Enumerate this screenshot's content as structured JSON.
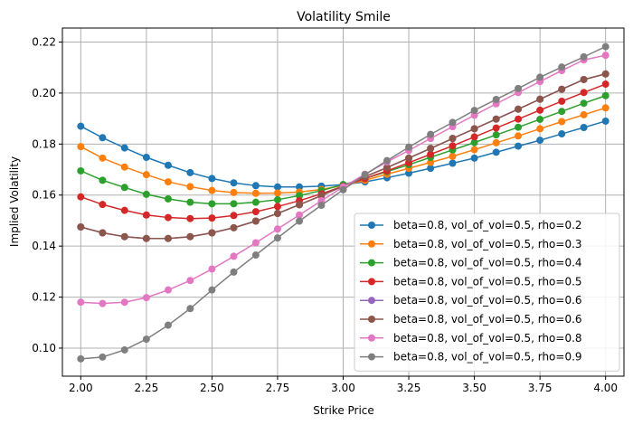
{
  "chart_data": {
    "type": "line",
    "title": "Volatility Smile",
    "xlabel": "Strike Price",
    "ylabel": "Implied Volatility",
    "xlim": [
      1.93,
      4.07
    ],
    "ylim": [
      0.089,
      0.2255
    ],
    "xticks": [
      2.0,
      2.25,
      2.5,
      2.75,
      3.0,
      3.25,
      3.5,
      3.75,
      4.0
    ],
    "xtick_labels": [
      "2.00",
      "2.25",
      "2.50",
      "2.75",
      "3.00",
      "3.25",
      "3.50",
      "3.75",
      "4.00"
    ],
    "yticks": [
      0.1,
      0.12,
      0.14,
      0.16,
      0.18,
      0.2,
      0.22
    ],
    "ytick_labels": [
      "0.10",
      "0.12",
      "0.14",
      "0.16",
      "0.18",
      "0.20",
      "0.22"
    ],
    "grid": true,
    "legend_position": "lower-right",
    "x": [
      2.0,
      2.083,
      2.167,
      2.25,
      2.333,
      2.417,
      2.5,
      2.583,
      2.667,
      2.75,
      2.833,
      2.917,
      3.0,
      3.083,
      3.167,
      3.25,
      3.333,
      3.417,
      3.5,
      3.583,
      3.667,
      3.75,
      3.833,
      3.917,
      4.0
    ],
    "series": [
      {
        "name": "beta=0.8, vol_of_vol=0.5, rho=0.2",
        "color": "#1f77b4",
        "values": [
          0.187,
          0.1825,
          0.1785,
          0.1748,
          0.1717,
          0.1688,
          0.1665,
          0.1648,
          0.1637,
          0.1632,
          0.1632,
          0.1635,
          0.1641,
          0.1652,
          0.1668,
          0.1686,
          0.1705,
          0.1725,
          0.1745,
          0.1768,
          0.1792,
          0.1815,
          0.184,
          0.1865,
          0.189
        ]
      },
      {
        "name": "beta=0.8, vol_of_vol=0.5, rho=0.3",
        "color": "#ff7f0e",
        "values": [
          0.179,
          0.1745,
          0.171,
          0.168,
          0.1652,
          0.1633,
          0.1618,
          0.161,
          0.1607,
          0.1608,
          0.1612,
          0.1622,
          0.1638,
          0.1658,
          0.1682,
          0.1705,
          0.1728,
          0.1752,
          0.1778,
          0.1805,
          0.1832,
          0.186,
          0.1888,
          0.1915,
          0.1942
        ]
      },
      {
        "name": "beta=0.8, vol_of_vol=0.5, rho=0.4",
        "color": "#2ca02c",
        "values": [
          0.1695,
          0.1658,
          0.163,
          0.1603,
          0.1585,
          0.1572,
          0.1566,
          0.1566,
          0.1572,
          0.1582,
          0.1598,
          0.1618,
          0.1641,
          0.1665,
          0.1692,
          0.1719,
          0.1748,
          0.1777,
          0.1806,
          0.1836,
          0.1866,
          0.1897,
          0.1928,
          0.196,
          0.199
        ]
      },
      {
        "name": "beta=0.8, vol_of_vol=0.5, rho=0.5",
        "color": "#d62728",
        "values": [
          0.1593,
          0.1563,
          0.154,
          0.1522,
          0.1512,
          0.1508,
          0.151,
          0.152,
          0.1535,
          0.1555,
          0.1578,
          0.1605,
          0.1635,
          0.1665,
          0.1695,
          0.1727,
          0.176,
          0.1793,
          0.1828,
          0.1863,
          0.1898,
          0.1933,
          0.1968,
          0.2002,
          0.2035
        ]
      },
      {
        "name": "beta=0.8, vol_of_vol=0.5, rho=0.6",
        "color": "#9467bd",
        "values": [
          0.1475,
          0.1452,
          0.1437,
          0.143,
          0.143,
          0.1437,
          0.1452,
          0.1472,
          0.1498,
          0.1528,
          0.1562,
          0.1598,
          0.1635,
          0.1672,
          0.1708,
          0.1745,
          0.1783,
          0.1822,
          0.186,
          0.1898,
          0.1937,
          0.1976,
          0.2015,
          0.2053,
          0.2075
        ]
      },
      {
        "name": "beta=0.8, vol_of_vol=0.5, rho=0.6",
        "color": "#8c564b",
        "values": [
          0.1475,
          0.1452,
          0.1437,
          0.143,
          0.143,
          0.1437,
          0.1452,
          0.1472,
          0.1498,
          0.1528,
          0.1562,
          0.1598,
          0.1635,
          0.1672,
          0.1708,
          0.1745,
          0.1783,
          0.1822,
          0.186,
          0.1898,
          0.1937,
          0.1976,
          0.2015,
          0.2053,
          0.2075
        ]
      },
      {
        "name": "beta=0.8, vol_of_vol=0.5, rho=0.8",
        "color": "#e377c2",
        "values": [
          0.118,
          0.1175,
          0.118,
          0.1198,
          0.1228,
          0.1265,
          0.131,
          0.136,
          0.1413,
          0.1467,
          0.1522,
          0.1578,
          0.1632,
          0.1682,
          0.173,
          0.1775,
          0.1822,
          0.1868,
          0.1913,
          0.1958,
          0.2002,
          0.2045,
          0.2088,
          0.213,
          0.2148
        ]
      },
      {
        "name": "beta=0.8, vol_of_vol=0.5, rho=0.9",
        "color": "#7f7f7f",
        "values": [
          0.0958,
          0.0965,
          0.0993,
          0.1035,
          0.109,
          0.1155,
          0.1228,
          0.1298,
          0.1365,
          0.1432,
          0.1498,
          0.156,
          0.1621,
          0.168,
          0.1735,
          0.1788,
          0.1838,
          0.1885,
          0.1932,
          0.1975,
          0.2018,
          0.2062,
          0.2102,
          0.2142,
          0.2182
        ]
      }
    ]
  }
}
